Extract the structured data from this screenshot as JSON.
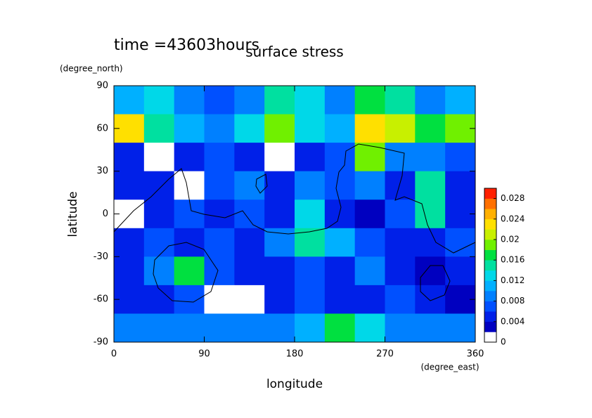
{
  "chart_data": {
    "type": "contour",
    "title": "surface stress",
    "subtitle": "time =43603hours",
    "ylabel": "latitude",
    "yunit": "(degree_north)",
    "xlabel": "longitude",
    "xunit": "(degree_east)",
    "xlim": [
      0,
      360
    ],
    "xticks": [
      0,
      90,
      180,
      270,
      360
    ],
    "ylim": [
      -90,
      90
    ],
    "yticks": [
      90,
      60,
      30,
      0,
      -30,
      -60,
      -90
    ],
    "x": [
      15,
      45,
      75,
      105,
      135,
      165,
      195,
      225,
      255,
      285,
      315,
      345
    ],
    "y": [
      80,
      60,
      40,
      20,
      0,
      -20,
      -40,
      -60,
      -80
    ],
    "z": [
      [
        0.01,
        0.012,
        0.008,
        0.006,
        0.008,
        0.014,
        0.012,
        0.008,
        0.016,
        0.014,
        0.008,
        0.01
      ],
      [
        0.022,
        0.014,
        0.01,
        0.008,
        0.012,
        0.018,
        0.012,
        0.01,
        0.022,
        0.02,
        0.016,
        0.018
      ],
      [
        0.004,
        0.001,
        0.004,
        0.006,
        0.004,
        0.001,
        0.004,
        0.006,
        0.018,
        0.008,
        0.008,
        0.006
      ],
      [
        0.004,
        0.004,
        0.001,
        0.006,
        0.008,
        0.004,
        0.008,
        0.006,
        0.008,
        0.004,
        0.014,
        0.004
      ],
      [
        0.001,
        0.004,
        0.006,
        0.004,
        0.006,
        0.004,
        0.012,
        0.004,
        0.002,
        0.006,
        0.014,
        0.004
      ],
      [
        0.004,
        0.006,
        0.004,
        0.006,
        0.004,
        0.008,
        0.014,
        0.01,
        0.006,
        0.004,
        0.004,
        0.006
      ],
      [
        0.004,
        0.008,
        0.016,
        0.006,
        0.004,
        0.004,
        0.006,
        0.004,
        0.008,
        0.004,
        0.002,
        0.004
      ],
      [
        0.004,
        0.004,
        0.006,
        0.001,
        0.001,
        0.004,
        0.006,
        0.004,
        0.004,
        0.006,
        0.004,
        0.002
      ],
      [
        0.008,
        0.008,
        0.008,
        0.008,
        0.008,
        0.008,
        0.01,
        0.016,
        0.012,
        0.008,
        0.008,
        0.008
      ]
    ],
    "clim": [
      0,
      0.03
    ],
    "colorbar_ticks": [
      0,
      0.004,
      0.008,
      0.012,
      0.016,
      0.02,
      0.024,
      0.028
    ],
    "colormap": [
      "#ffffff",
      "#0000c0",
      "#0020e8",
      "#0050ff",
      "#0080ff",
      "#00b0ff",
      "#00d8e8",
      "#00e0a0",
      "#00e040",
      "#70f000",
      "#c8f000",
      "#ffe000",
      "#ffb000",
      "#ff7000",
      "#ff2000"
    ],
    "grid": false
  }
}
